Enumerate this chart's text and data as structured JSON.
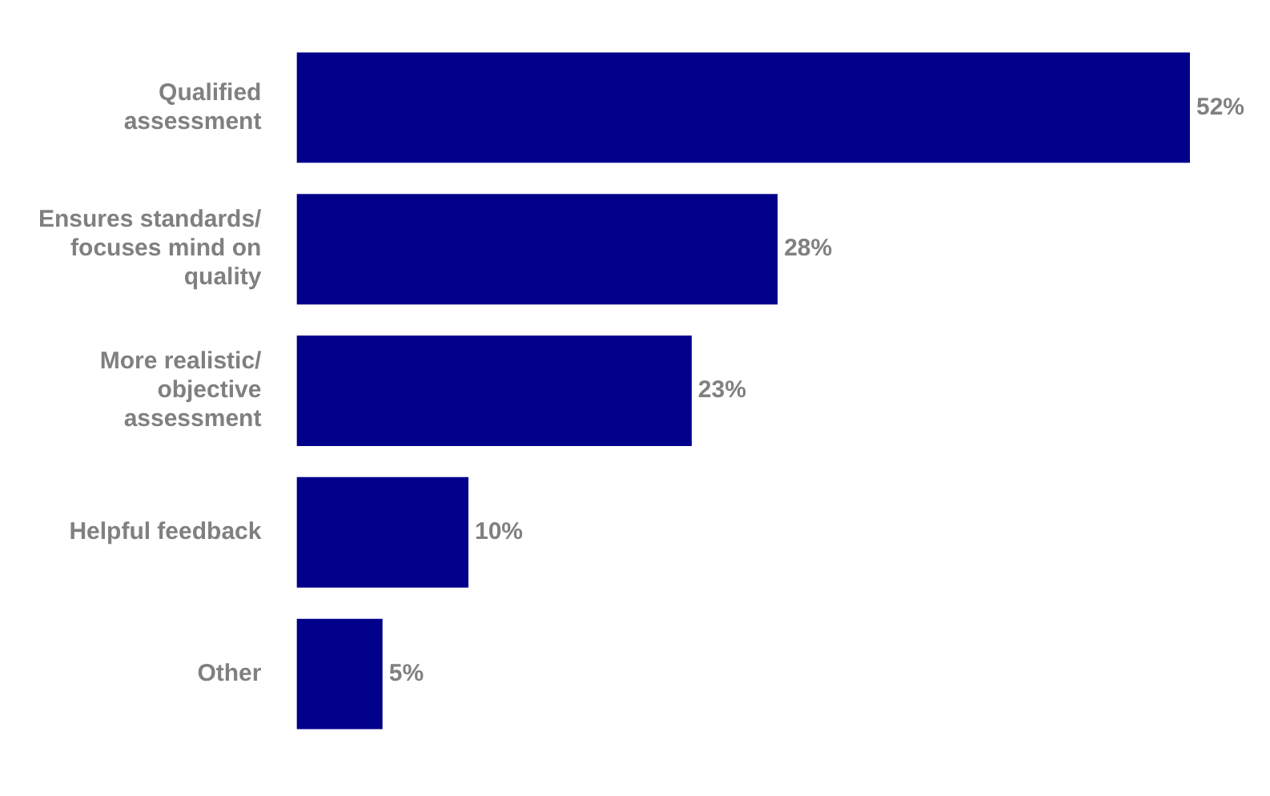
{
  "chart_data": {
    "type": "bar",
    "orientation": "horizontal",
    "categories": [
      "Qualified assessment",
      "Ensures standards/ focuses mind on quality",
      "More realistic/ objective assessment",
      "Helpful feedback",
      "Other"
    ],
    "values": [
      52,
      28,
      23,
      10,
      5
    ],
    "color": "#00008b",
    "data_labels": true,
    "value_labels": [
      "52%",
      "28%",
      "23%",
      "10%",
      "5%"
    ],
    "legend": false
  }
}
